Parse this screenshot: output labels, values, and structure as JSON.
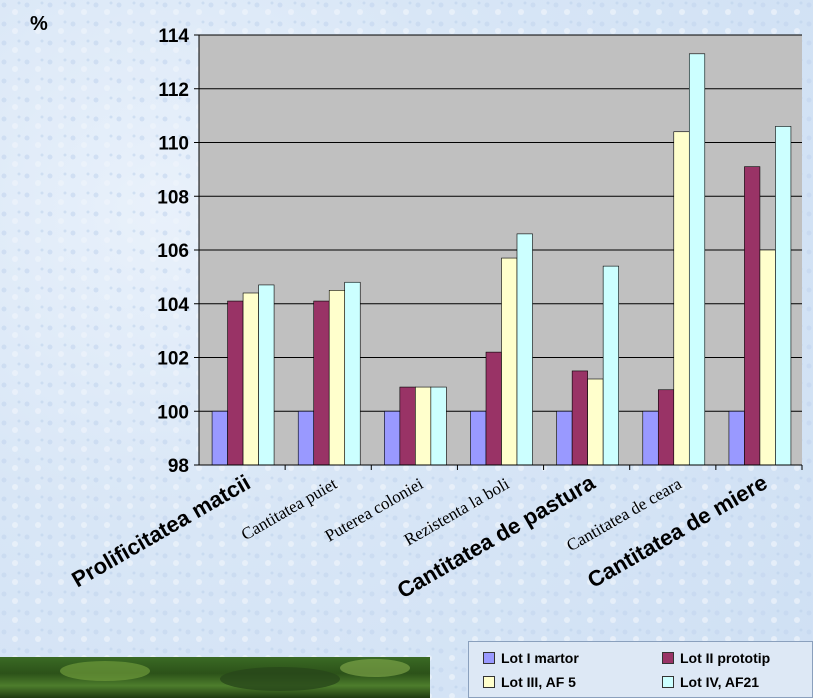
{
  "chart_data": {
    "type": "bar",
    "ylabel": "%",
    "ylim": [
      98,
      114
    ],
    "yticks": [
      "98",
      "100",
      "102",
      "104",
      "106",
      "108",
      "110",
      "112",
      "114"
    ],
    "categories": [
      "Prolificitatea matcii",
      "Cantitatea puiet",
      "Puterea coloniei",
      "Rezistenta la boli",
      "Cantitatea de pastura",
      "Cantitatea de ceara",
      "Cantitatea de miere"
    ],
    "series": [
      {
        "name": "Lot I martor",
        "color": "#9999ff",
        "values": [
          100,
          100,
          100,
          100,
          100,
          100,
          100
        ]
      },
      {
        "name": "Lot II prototip",
        "color": "#993366",
        "values": [
          104.1,
          104.1,
          100.9,
          102.2,
          101.5,
          100.8,
          109.1
        ]
      },
      {
        "name": "Lot III, AF 5",
        "color": "#ffffcc",
        "values": [
          104.4,
          104.5,
          100.9,
          105.7,
          101.2,
          110.4,
          106.0
        ]
      },
      {
        "name": "Lot IV, AF21",
        "color": "#ccffff",
        "values": [
          104.7,
          104.8,
          100.9,
          106.6,
          105.4,
          113.3,
          110.6
        ]
      }
    ],
    "grid": true,
    "legend_position": "bottom-right"
  }
}
